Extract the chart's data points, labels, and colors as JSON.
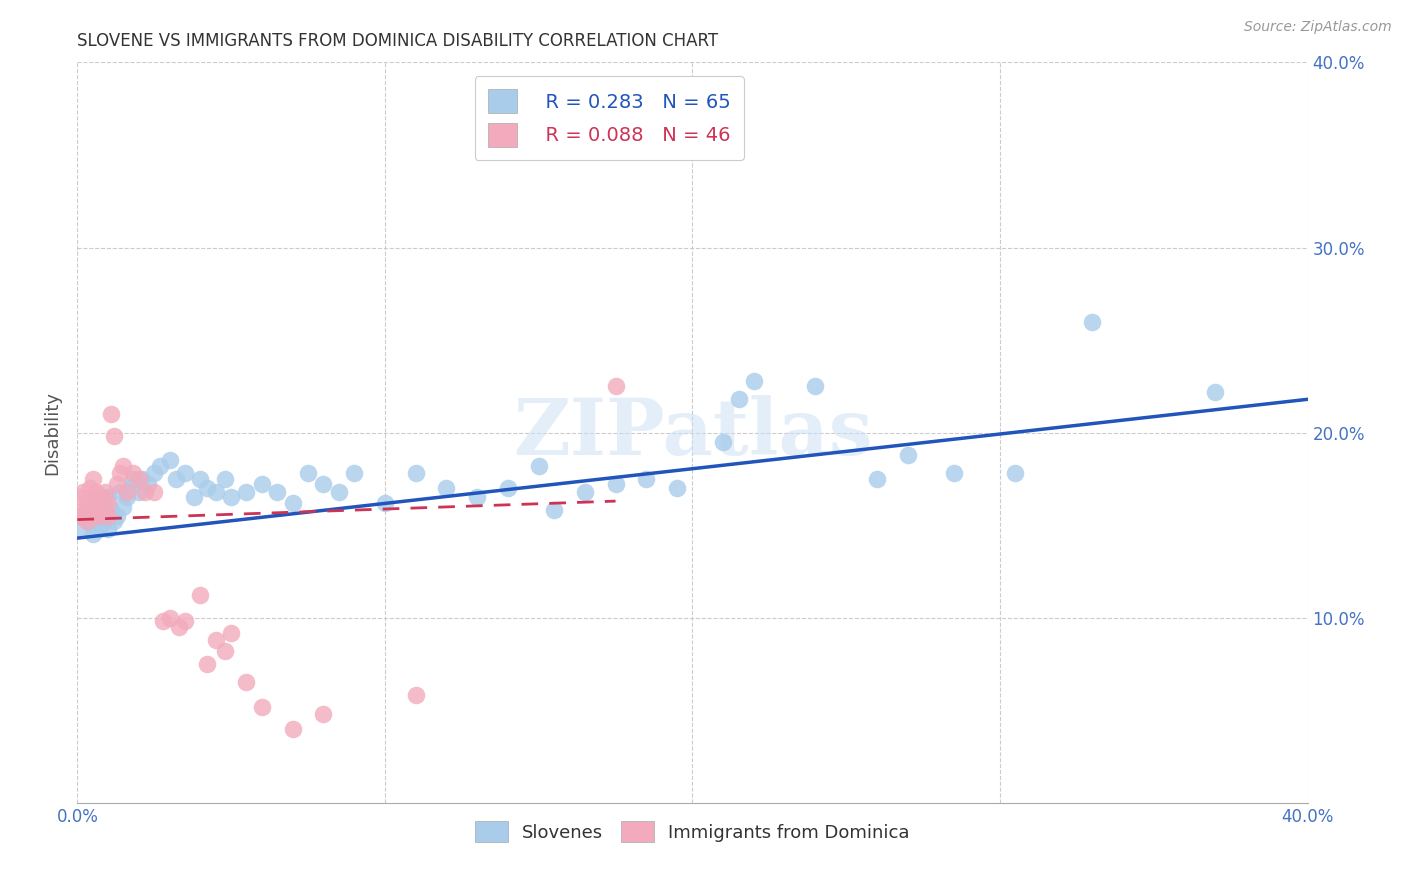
{
  "title": "SLOVENE VS IMMIGRANTS FROM DOMINICA DISABILITY CORRELATION CHART",
  "source": "Source: ZipAtlas.com",
  "ylabel": "Disability",
  "watermark": "ZIPatlas",
  "xlim": [
    0.0,
    0.4
  ],
  "ylim": [
    0.0,
    0.4
  ],
  "legend_blue_R": "R = 0.283",
  "legend_blue_N": "N = 65",
  "legend_pink_R": "R = 0.088",
  "legend_pink_N": "N = 46",
  "blue_scatter_color": "#A8CCEA",
  "pink_scatter_color": "#F2AABC",
  "blue_line_color": "#2255BB",
  "pink_line_color": "#CC3355",
  "background_color": "#FFFFFF",
  "grid_color": "#CCCCCC",
  "title_color": "#333333",
  "axis_label_color": "#555555",
  "tick_label_color": "#4472C4",
  "blue_trend_x0": 0.0,
  "blue_trend_y0": 0.143,
  "blue_trend_x1": 0.4,
  "blue_trend_y1": 0.218,
  "pink_trend_x0": 0.0,
  "pink_trend_y0": 0.153,
  "pink_trend_x1": 0.175,
  "pink_trend_y1": 0.163,
  "slovenes_x": [
    0.001,
    0.002,
    0.003,
    0.004,
    0.005,
    0.005,
    0.006,
    0.007,
    0.007,
    0.008,
    0.008,
    0.009,
    0.01,
    0.01,
    0.011,
    0.012,
    0.013,
    0.014,
    0.015,
    0.016,
    0.017,
    0.018,
    0.02,
    0.021,
    0.023,
    0.025,
    0.027,
    0.03,
    0.032,
    0.035,
    0.038,
    0.04,
    0.042,
    0.045,
    0.048,
    0.05,
    0.055,
    0.06,
    0.065,
    0.07,
    0.075,
    0.08,
    0.085,
    0.09,
    0.1,
    0.11,
    0.12,
    0.13,
    0.14,
    0.15,
    0.155,
    0.165,
    0.175,
    0.185,
    0.195,
    0.21,
    0.215,
    0.22,
    0.24,
    0.26,
    0.27,
    0.285,
    0.305,
    0.33,
    0.37
  ],
  "slovenes_y": [
    0.155,
    0.148,
    0.152,
    0.158,
    0.145,
    0.16,
    0.155,
    0.148,
    0.165,
    0.15,
    0.162,
    0.155,
    0.148,
    0.165,
    0.158,
    0.152,
    0.155,
    0.168,
    0.16,
    0.165,
    0.17,
    0.175,
    0.168,
    0.175,
    0.172,
    0.178,
    0.182,
    0.185,
    0.175,
    0.178,
    0.165,
    0.175,
    0.17,
    0.168,
    0.175,
    0.165,
    0.168,
    0.172,
    0.168,
    0.162,
    0.178,
    0.172,
    0.168,
    0.178,
    0.162,
    0.178,
    0.17,
    0.165,
    0.17,
    0.182,
    0.158,
    0.168,
    0.172,
    0.175,
    0.17,
    0.195,
    0.218,
    0.228,
    0.225,
    0.175,
    0.188,
    0.178,
    0.178,
    0.26,
    0.222
  ],
  "dominica_x": [
    0.001,
    0.001,
    0.002,
    0.002,
    0.003,
    0.003,
    0.004,
    0.004,
    0.005,
    0.005,
    0.005,
    0.006,
    0.006,
    0.007,
    0.007,
    0.008,
    0.008,
    0.009,
    0.009,
    0.01,
    0.01,
    0.011,
    0.012,
    0.013,
    0.014,
    0.015,
    0.016,
    0.018,
    0.02,
    0.022,
    0.025,
    0.028,
    0.03,
    0.033,
    0.035,
    0.04,
    0.042,
    0.045,
    0.048,
    0.05,
    0.055,
    0.06,
    0.07,
    0.08,
    0.11,
    0.175
  ],
  "dominica_y": [
    0.155,
    0.165,
    0.158,
    0.168,
    0.152,
    0.162,
    0.16,
    0.17,
    0.155,
    0.165,
    0.175,
    0.158,
    0.168,
    0.155,
    0.162,
    0.158,
    0.165,
    0.158,
    0.168,
    0.155,
    0.162,
    0.21,
    0.198,
    0.172,
    0.178,
    0.182,
    0.168,
    0.178,
    0.175,
    0.168,
    0.168,
    0.098,
    0.1,
    0.095,
    0.098,
    0.112,
    0.075,
    0.088,
    0.082,
    0.092,
    0.065,
    0.052,
    0.04,
    0.048,
    0.058,
    0.225
  ]
}
